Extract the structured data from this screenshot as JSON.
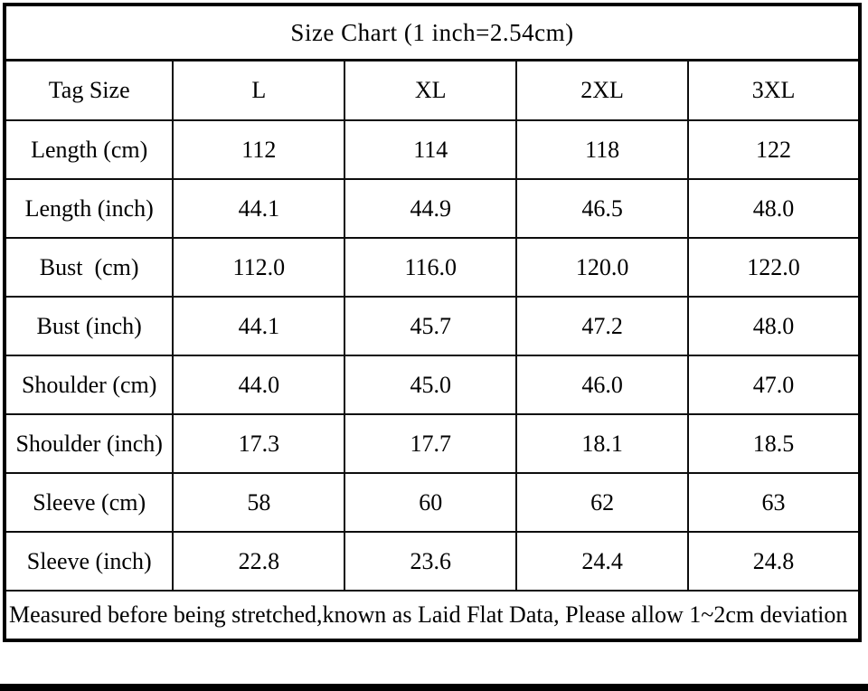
{
  "table": {
    "title": "Size Chart (1 inch=2.54cm)",
    "columns": [
      "Tag Size",
      "L",
      "XL",
      "2XL",
      "3XL"
    ],
    "rows": [
      {
        "label": "Length (cm)",
        "values": [
          "112",
          "114",
          "118",
          "122"
        ]
      },
      {
        "label": "Length (inch)",
        "values": [
          "44.1",
          "44.9",
          "46.5",
          "48.0"
        ]
      },
      {
        "label": "Bust  (cm)",
        "values": [
          "112.0",
          "116.0",
          "120.0",
          "122.0"
        ]
      },
      {
        "label": "Bust (inch)",
        "values": [
          "44.1",
          "45.7",
          "47.2",
          "48.0"
        ]
      },
      {
        "label": "Shoulder (cm)",
        "values": [
          "44.0",
          "45.0",
          "46.0",
          "47.0"
        ]
      },
      {
        "label": "Shoulder (inch)",
        "values": [
          "17.3",
          "17.7",
          "18.1",
          "18.5"
        ]
      },
      {
        "label": "Sleeve (cm)",
        "values": [
          "58",
          "60",
          "62",
          "63"
        ]
      },
      {
        "label": "Sleeve (inch)",
        "values": [
          "22.8",
          "23.6",
          "24.4",
          "24.8"
        ]
      }
    ],
    "footnote": "Measured before being stretched,known as Laid Flat Data, Please allow 1~2cm deviation",
    "colors": {
      "border": "#000000",
      "background": "#ffffff",
      "text": "#000000"
    }
  }
}
